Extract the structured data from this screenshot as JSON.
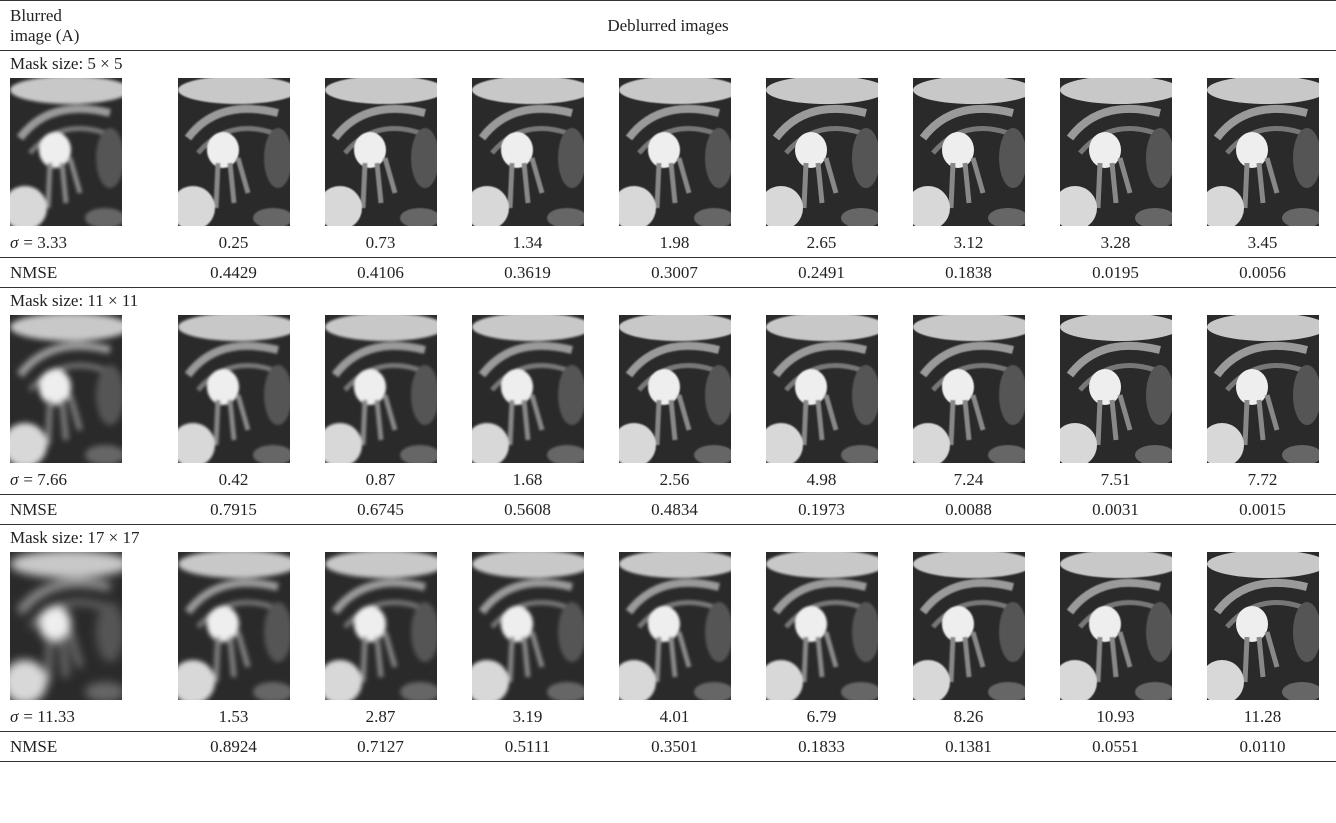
{
  "header": {
    "blurred": "Blurred image (A)",
    "deblurred": "Deblurred images"
  },
  "sections": [
    {
      "label": "Mask size: 5 × 5",
      "sigma_symbol": "σ",
      "sigma_label": "= 3.33",
      "sigma": [
        "0.25",
        "0.73",
        "1.34",
        "1.98",
        "2.65",
        "3.12",
        "3.28",
        "3.45"
      ],
      "nmse_label": "NMSE",
      "nmse": [
        "0.4429",
        "0.4106",
        "0.3619",
        "0.3007",
        "0.2491",
        "0.1838",
        "0.0195",
        "0.0056"
      ]
    },
    {
      "label": "Mask size: 11 × 11",
      "sigma_symbol": "σ",
      "sigma_label": "= 7.66",
      "sigma": [
        "0.42",
        "0.87",
        "1.68",
        "2.56",
        "4.98",
        "7.24",
        "7.51",
        "7.72"
      ],
      "nmse_label": "NMSE",
      "nmse": [
        "0.7915",
        "0.6745",
        "0.5608",
        "0.4834",
        "0.1973",
        "0.0088",
        "0.0031",
        "0.0015"
      ]
    },
    {
      "label": "Mask size: 17 × 17",
      "sigma_symbol": "σ",
      "sigma_label": "= 11.33",
      "sigma": [
        "1.53",
        "2.87",
        "3.19",
        "4.01",
        "6.79",
        "8.26",
        "10.93",
        "11.28"
      ],
      "nmse_label": "NMSE",
      "nmse": [
        "0.8924",
        "0.7127",
        "0.5111",
        "0.3501",
        "0.1833",
        "0.1381",
        "0.0551",
        "0.0110"
      ]
    }
  ]
}
